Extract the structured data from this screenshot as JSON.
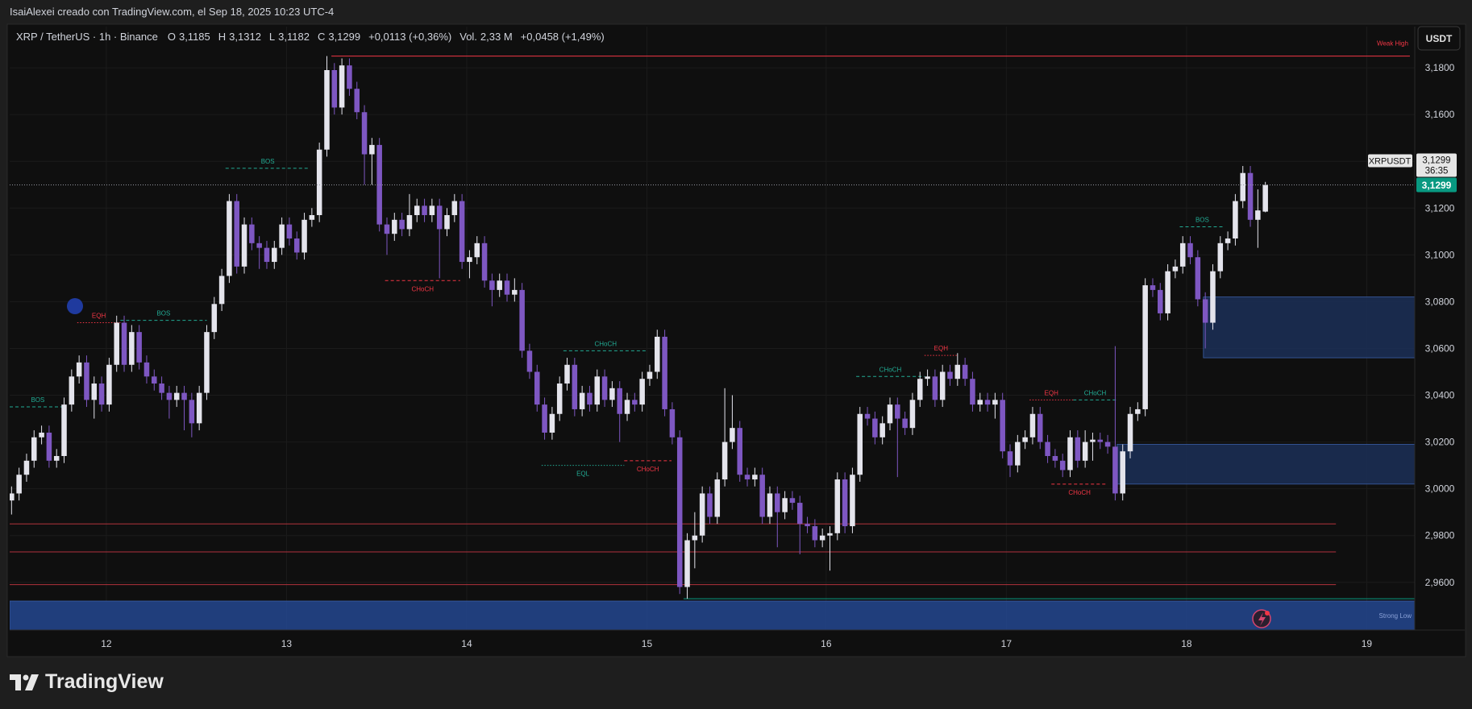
{
  "header": {
    "title": "IsaiAlexei creado con TradingView.com, el Sep 18, 2025 10:23 UTC-4"
  },
  "footer": {
    "logo": "TradingView"
  },
  "chart_data": {
    "type": "candlestick",
    "symbol": "XRP / TetherUS · 1h · Binance",
    "legend": {
      "o_label": "O",
      "open": "3,1185",
      "h_label": "H",
      "high": "3,1312",
      "l_label": "L",
      "low": "3,1182",
      "c_label": "C",
      "close": "3,1299",
      "change": "+0,0113 (+0,36%)",
      "vol_label": "Vol.",
      "volume": "2,33 M",
      "vol_change": "+0,0458 (+1,49%)"
    },
    "currency": "USDT",
    "symbol_tag": "XRPUSDT",
    "countdown": "36:35",
    "last_price": {
      "value": 3.1299,
      "label": "3,1299"
    },
    "up_color": "#e4e4ec",
    "down_color": "#7e57c2",
    "xlim": [
      -0.25,
      186.9
    ],
    "ylim": [
      2.9396,
      3.1976
    ],
    "xticks": [
      {
        "value": 12.625,
        "label": "12"
      },
      {
        "value": 36.625,
        "label": "13"
      },
      {
        "value": 60.625,
        "label": "14"
      },
      {
        "value": 84.625,
        "label": "15"
      },
      {
        "value": 108.5,
        "label": "16"
      },
      {
        "value": 132.5,
        "label": "17"
      },
      {
        "value": 156.5,
        "label": "18"
      },
      {
        "value": 180.5,
        "label": "19"
      }
    ],
    "yticks": [
      {
        "value": 2.96,
        "label": "2,9600"
      },
      {
        "value": 2.98,
        "label": "2,9800"
      },
      {
        "value": 3.0,
        "label": "3,0000"
      },
      {
        "value": 3.02,
        "label": "3,0200"
      },
      {
        "value": 3.04,
        "label": "3,0400"
      },
      {
        "value": 3.06,
        "label": "3,0600"
      },
      {
        "value": 3.08,
        "label": "3,0800"
      },
      {
        "value": 3.1,
        "label": "3,1000"
      },
      {
        "value": 3.12,
        "label": "3,1200"
      },
      {
        "value": 3.14,
        "label": "3,1400"
      },
      {
        "value": 3.16,
        "label": "3,1600"
      },
      {
        "value": 3.18,
        "label": "3,1800"
      }
    ],
    "grid": true,
    "ohlc": [
      [
        2.995,
        3.001,
        2.989,
        2.998
      ],
      [
        2.998,
        3.009,
        2.995,
        3.006
      ],
      [
        3.006,
        3.015,
        3.003,
        3.012
      ],
      [
        3.012,
        3.025,
        3.009,
        3.022
      ],
      [
        3.022,
        3.027,
        3.019,
        3.024
      ],
      [
        3.024,
        3.027,
        3.009,
        3.012
      ],
      [
        3.012,
        3.017,
        3.009,
        3.014
      ],
      [
        3.014,
        3.039,
        3.011,
        3.036
      ],
      [
        3.036,
        3.051,
        3.033,
        3.048
      ],
      [
        3.048,
        3.057,
        3.045,
        3.054
      ],
      [
        3.054,
        3.057,
        3.035,
        3.038
      ],
      [
        3.038,
        3.048,
        3.03,
        3.045
      ],
      [
        3.045,
        3.048,
        3.033,
        3.036
      ],
      [
        3.036,
        3.056,
        3.033,
        3.053
      ],
      [
        3.053,
        3.074,
        3.05,
        3.071
      ],
      [
        3.071,
        3.074,
        3.05,
        3.053
      ],
      [
        3.053,
        3.07,
        3.05,
        3.067
      ],
      [
        3.067,
        3.07,
        3.051,
        3.054
      ],
      [
        3.054,
        3.057,
        3.045,
        3.048
      ],
      [
        3.048,
        3.051,
        3.042,
        3.045
      ],
      [
        3.045,
        3.048,
        3.038,
        3.041
      ],
      [
        3.041,
        3.044,
        3.03,
        3.038
      ],
      [
        3.038,
        3.044,
        3.035,
        3.041
      ],
      [
        3.041,
        3.044,
        3.025,
        3.038
      ],
      [
        3.038,
        3.041,
        3.022,
        3.028
      ],
      [
        3.028,
        3.044,
        3.025,
        3.041
      ],
      [
        3.041,
        3.07,
        3.038,
        3.067
      ],
      [
        3.067,
        3.082,
        3.064,
        3.079
      ],
      [
        3.079,
        3.094,
        3.076,
        3.091
      ],
      [
        3.091,
        3.126,
        3.088,
        3.123
      ],
      [
        3.123,
        3.126,
        3.092,
        3.095
      ],
      [
        3.095,
        3.116,
        3.092,
        3.113
      ],
      [
        3.113,
        3.116,
        3.102,
        3.105
      ],
      [
        3.105,
        3.108,
        3.094,
        3.103
      ],
      [
        3.103,
        3.106,
        3.094,
        3.097
      ],
      [
        3.097,
        3.106,
        3.094,
        3.103
      ],
      [
        3.103,
        3.116,
        3.1,
        3.113
      ],
      [
        3.113,
        3.116,
        3.104,
        3.107
      ],
      [
        3.107,
        3.11,
        3.098,
        3.101
      ],
      [
        3.101,
        3.118,
        3.098,
        3.115
      ],
      [
        3.115,
        3.12,
        3.112,
        3.117
      ],
      [
        3.117,
        3.148,
        3.114,
        3.145
      ],
      [
        3.145,
        3.185,
        3.142,
        3.179
      ],
      [
        3.179,
        3.182,
        3.16,
        3.163
      ],
      [
        3.163,
        3.184,
        3.16,
        3.181
      ],
      [
        3.181,
        3.184,
        3.168,
        3.171
      ],
      [
        3.171,
        3.174,
        3.158,
        3.161
      ],
      [
        3.161,
        3.164,
        3.13,
        3.143
      ],
      [
        3.143,
        3.15,
        3.13,
        3.147
      ],
      [
        3.147,
        3.15,
        3.11,
        3.113
      ],
      [
        3.113,
        3.116,
        3.1,
        3.109
      ],
      [
        3.109,
        3.118,
        3.106,
        3.115
      ],
      [
        3.115,
        3.118,
        3.108,
        3.111
      ],
      [
        3.111,
        3.126,
        3.108,
        3.117
      ],
      [
        3.117,
        3.124,
        3.114,
        3.121
      ],
      [
        3.121,
        3.124,
        3.114,
        3.117
      ],
      [
        3.117,
        3.124,
        3.114,
        3.121
      ],
      [
        3.121,
        3.124,
        3.09,
        3.111
      ],
      [
        3.111,
        3.12,
        3.108,
        3.117
      ],
      [
        3.117,
        3.126,
        3.114,
        3.123
      ],
      [
        3.123,
        3.126,
        3.094,
        3.097
      ],
      [
        3.097,
        3.102,
        3.09,
        3.099
      ],
      [
        3.099,
        3.108,
        3.096,
        3.105
      ],
      [
        3.105,
        3.108,
        3.086,
        3.089
      ],
      [
        3.089,
        3.092,
        3.078,
        3.085
      ],
      [
        3.085,
        3.092,
        3.082,
        3.089
      ],
      [
        3.089,
        3.092,
        3.08,
        3.083
      ],
      [
        3.083,
        3.09,
        3.08,
        3.085
      ],
      [
        3.085,
        3.088,
        3.056,
        3.059
      ],
      [
        3.059,
        3.062,
        3.047,
        3.05
      ],
      [
        3.05,
        3.053,
        3.033,
        3.036
      ],
      [
        3.036,
        3.039,
        3.021,
        3.024
      ],
      [
        3.024,
        3.035,
        3.021,
        3.032
      ],
      [
        3.032,
        3.048,
        3.029,
        3.045
      ],
      [
        3.045,
        3.056,
        3.042,
        3.053
      ],
      [
        3.053,
        3.056,
        3.031,
        3.034
      ],
      [
        3.034,
        3.044,
        3.031,
        3.041
      ],
      [
        3.041,
        3.044,
        3.033,
        3.036
      ],
      [
        3.036,
        3.051,
        3.033,
        3.048
      ],
      [
        3.048,
        3.051,
        3.035,
        3.038
      ],
      [
        3.038,
        3.046,
        3.035,
        3.043
      ],
      [
        3.043,
        3.046,
        3.02,
        3.032
      ],
      [
        3.032,
        3.041,
        3.029,
        3.038
      ],
      [
        3.038,
        3.041,
        3.033,
        3.036
      ],
      [
        3.036,
        3.05,
        3.033,
        3.047
      ],
      [
        3.047,
        3.053,
        3.044,
        3.05
      ],
      [
        3.05,
        3.068,
        3.047,
        3.065
      ],
      [
        3.065,
        3.068,
        3.031,
        3.034
      ],
      [
        3.034,
        3.037,
        3.019,
        3.022
      ],
      [
        3.022,
        3.025,
        2.955,
        2.958
      ],
      [
        2.958,
        2.981,
        2.953,
        2.978
      ],
      [
        2.978,
        2.99,
        2.966,
        2.98
      ],
      [
        2.98,
        3.001,
        2.977,
        2.998
      ],
      [
        2.998,
        3.001,
        2.985,
        2.988
      ],
      [
        2.988,
        3.007,
        2.985,
        3.004
      ],
      [
        3.004,
        3.043,
        3.001,
        3.02
      ],
      [
        3.02,
        3.04,
        3.017,
        3.026
      ],
      [
        3.026,
        3.029,
        3.003,
        3.006
      ],
      [
        3.006,
        3.009,
        3.001,
        3.004
      ],
      [
        3.004,
        3.009,
        3.001,
        3.006
      ],
      [
        3.006,
        3.009,
        2.985,
        2.988
      ],
      [
        2.988,
        3.001,
        2.985,
        2.998
      ],
      [
        2.998,
        3.001,
        2.975,
        2.99
      ],
      [
        2.99,
        2.999,
        2.987,
        2.996
      ],
      [
        2.996,
        2.999,
        2.991,
        2.994
      ],
      [
        2.994,
        2.997,
        2.972,
        2.985
      ],
      [
        2.985,
        2.988,
        2.981,
        2.984
      ],
      [
        2.984,
        2.987,
        2.975,
        2.978
      ],
      [
        2.978,
        2.983,
        2.975,
        2.98
      ],
      [
        2.98,
        2.984,
        2.965,
        2.981
      ],
      [
        2.981,
        3.007,
        2.978,
        3.004
      ],
      [
        3.004,
        3.007,
        2.981,
        2.984
      ],
      [
        2.984,
        3.009,
        2.981,
        3.006
      ],
      [
        3.006,
        3.035,
        3.003,
        3.032
      ],
      [
        3.032,
        3.035,
        3.027,
        3.03
      ],
      [
        3.03,
        3.033,
        3.019,
        3.022
      ],
      [
        3.022,
        3.031,
        3.019,
        3.028
      ],
      [
        3.028,
        3.039,
        3.025,
        3.036
      ],
      [
        3.036,
        3.039,
        3.005,
        3.03
      ],
      [
        3.03,
        3.033,
        3.023,
        3.026
      ],
      [
        3.026,
        3.041,
        3.023,
        3.038
      ],
      [
        3.038,
        3.05,
        3.035,
        3.047
      ],
      [
        3.047,
        3.051,
        3.044,
        3.048
      ],
      [
        3.048,
        3.051,
        3.035,
        3.038
      ],
      [
        3.038,
        3.053,
        3.035,
        3.05
      ],
      [
        3.05,
        3.053,
        3.044,
        3.047
      ],
      [
        3.047,
        3.058,
        3.044,
        3.053
      ],
      [
        3.053,
        3.056,
        3.044,
        3.047
      ],
      [
        3.047,
        3.05,
        3.033,
        3.036
      ],
      [
        3.036,
        3.041,
        3.033,
        3.038
      ],
      [
        3.038,
        3.041,
        3.033,
        3.036
      ],
      [
        3.036,
        3.041,
        3.03,
        3.038
      ],
      [
        3.038,
        3.041,
        3.013,
        3.016
      ],
      [
        3.016,
        3.019,
        3.005,
        3.01
      ],
      [
        3.01,
        3.023,
        3.007,
        3.02
      ],
      [
        3.02,
        3.025,
        3.017,
        3.022
      ],
      [
        3.022,
        3.035,
        3.019,
        3.032
      ],
      [
        3.032,
        3.035,
        3.017,
        3.02
      ],
      [
        3.02,
        3.023,
        3.011,
        3.014
      ],
      [
        3.014,
        3.017,
        3.009,
        3.012
      ],
      [
        3.012,
        3.015,
        3.005,
        3.008
      ],
      [
        3.008,
        3.025,
        3.005,
        3.022
      ],
      [
        3.022,
        3.025,
        3.009,
        3.012
      ],
      [
        3.012,
        3.025,
        3.009,
        3.02
      ],
      [
        3.02,
        3.024,
        3.012,
        3.021
      ],
      [
        3.021,
        3.024,
        3.017,
        3.02
      ],
      [
        3.02,
        3.023,
        3.015,
        3.018
      ],
      [
        3.018,
        3.061,
        2.995,
        2.998
      ],
      [
        2.998,
        3.019,
        2.995,
        3.016
      ],
      [
        3.016,
        3.035,
        3.013,
        3.032
      ],
      [
        3.032,
        3.037,
        3.029,
        3.034
      ],
      [
        3.034,
        3.09,
        3.031,
        3.087
      ],
      [
        3.087,
        3.09,
        3.082,
        3.085
      ],
      [
        3.085,
        3.088,
        3.072,
        3.075
      ],
      [
        3.075,
        3.096,
        3.072,
        3.093
      ],
      [
        3.093,
        3.098,
        3.09,
        3.095
      ],
      [
        3.095,
        3.108,
        3.092,
        3.105
      ],
      [
        3.105,
        3.108,
        3.096,
        3.099
      ],
      [
        3.099,
        3.102,
        3.078,
        3.081
      ],
      [
        3.081,
        3.084,
        3.06,
        3.071
      ],
      [
        3.071,
        3.096,
        3.068,
        3.093
      ],
      [
        3.093,
        3.108,
        3.09,
        3.105
      ],
      [
        3.105,
        3.11,
        3.102,
        3.107
      ],
      [
        3.107,
        3.126,
        3.104,
        3.123
      ],
      [
        3.123,
        3.138,
        3.12,
        3.135
      ],
      [
        3.135,
        3.138,
        3.112,
        3.115
      ],
      [
        3.115,
        3.128,
        3.103,
        3.119
      ],
      [
        3.1185,
        3.1312,
        3.1182,
        3.1299
      ]
    ],
    "zones": [
      {
        "y": [
          3.056,
          3.082
        ],
        "x": [
          158.75,
          186.9
        ],
        "color": "#1b2f57"
      },
      {
        "y": [
          3.002,
          3.019
        ],
        "x": [
          147.25,
          186.9
        ],
        "color": "#1b2f57"
      },
      {
        "y": [
          2.9396,
          2.952
        ],
        "x": [
          -0.25,
          186.9
        ],
        "color": "#23478f",
        "text": "Strong Low"
      }
    ],
    "levels": [
      {
        "y": 3.185,
        "x": [
          42.6,
          186.25
        ],
        "color": "#f23645",
        "text": "Weak High"
      },
      {
        "y": 2.985,
        "x": [
          -0.25,
          176.4
        ],
        "color": "#b2323c"
      },
      {
        "y": 2.973,
        "x": [
          -0.25,
          176.4
        ],
        "color": "#b2323c"
      },
      {
        "y": 2.959,
        "x": [
          -0.25,
          176.4
        ],
        "color": "#b2323c"
      },
      {
        "y": 2.953,
        "x": [
          89.5,
          186.9
        ],
        "color": "#089981"
      }
    ],
    "annotations": [
      {
        "text": "BOS",
        "x": [
          -0.25,
          7.25
        ],
        "y": 3.035,
        "color": "#22ab94",
        "style": "dashed",
        "label_pos": "above"
      },
      {
        "text": "EQH",
        "x": [
          8.75,
          14.5
        ],
        "y": 3.071,
        "color": "#f23645",
        "style": "dotted",
        "label_pos": "above"
      },
      {
        "text": "BOS",
        "x": [
          14.5,
          26
        ],
        "y": 3.072,
        "color": "#22ab94",
        "style": "dashed",
        "label_pos": "above"
      },
      {
        "text": "BOS",
        "x": [
          28.5,
          39.75
        ],
        "y": 3.137,
        "color": "#22ab94",
        "style": "dashed",
        "label_pos": "above"
      },
      {
        "text": "CHoCH",
        "x": [
          49.75,
          59.75
        ],
        "y": 3.089,
        "color": "#f23645",
        "style": "dashed",
        "label_pos": "below"
      },
      {
        "text": "CHoCH",
        "x": [
          73.5,
          84.75
        ],
        "y": 3.059,
        "color": "#22ab94",
        "style": "dashed",
        "label_pos": "above"
      },
      {
        "text": "EQL",
        "x": [
          70.6,
          81.6
        ],
        "y": 3.01,
        "color": "#22ab94",
        "style": "dotted",
        "label_pos": "below"
      },
      {
        "text": "CHoCH",
        "x": [
          81.6,
          87.9
        ],
        "y": 3.012,
        "color": "#f23645",
        "style": "dashed",
        "label_pos": "below"
      },
      {
        "text": "CHoCH",
        "x": [
          112.5,
          121.6
        ],
        "y": 3.048,
        "color": "#22ab94",
        "style": "dashed",
        "label_pos": "above"
      },
      {
        "text": "EQH",
        "x": [
          121.6,
          126
        ],
        "y": 3.057,
        "color": "#f23645",
        "style": "dotted",
        "label_pos": "above"
      },
      {
        "text": "EQH",
        "x": [
          135.6,
          141.4
        ],
        "y": 3.038,
        "color": "#f23645",
        "style": "dotted",
        "label_pos": "above"
      },
      {
        "text": "CHoCH",
        "x": [
          141.4,
          147.25
        ],
        "y": 3.038,
        "color": "#22ab94",
        "style": "dashed",
        "label_pos": "above"
      },
      {
        "text": "CHoCH",
        "x": [
          138.5,
          146
        ],
        "y": 3.002,
        "color": "#f23645",
        "style": "dashed",
        "label_pos": "below"
      },
      {
        "text": "BOS",
        "x": [
          155.6,
          161.6
        ],
        "y": 3.112,
        "color": "#22ab94",
        "style": "dashed",
        "label_pos": "above"
      }
    ]
  }
}
